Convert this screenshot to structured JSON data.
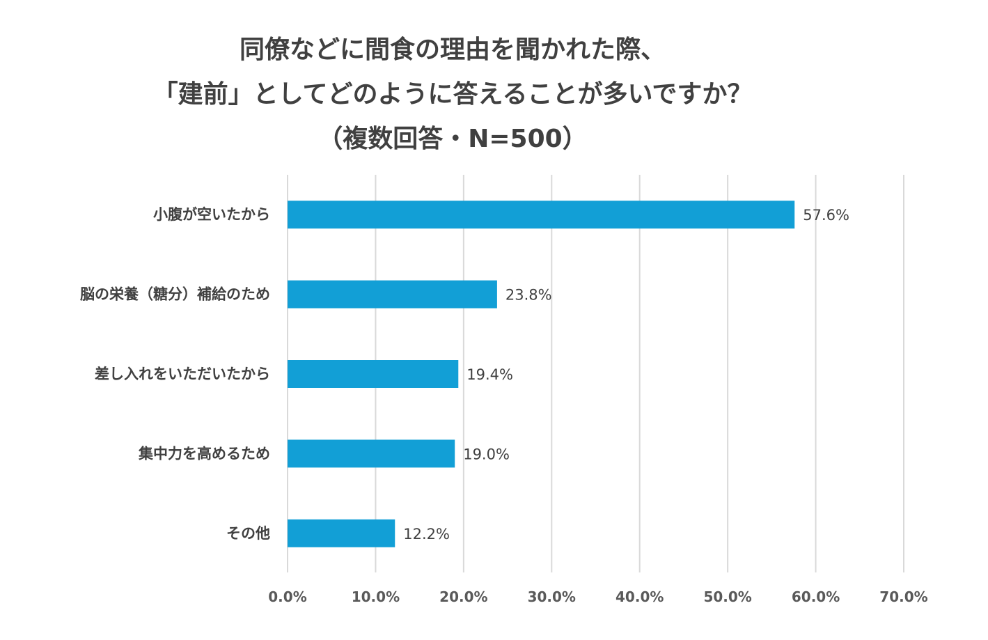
{
  "chart_data": {
    "type": "bar",
    "orientation": "horizontal",
    "title_lines": [
      "同僚などに間食の理由を聞かれた際、",
      "「建前」としてどのように答えることが多いですか？",
      "（複数回答・N=500）"
    ],
    "categories": [
      "小腹が空いたから",
      "脳の栄養（糖分）補給のため",
      "差し入れをいただいたから",
      "集中力を高めるため",
      "その他"
    ],
    "values": [
      57.6,
      23.8,
      19.4,
      19.0,
      12.2
    ],
    "data_labels": [
      "57.6%",
      "23.8%",
      "19.4%",
      "19.0%",
      "12.2%"
    ],
    "xlim": [
      0,
      70
    ],
    "x_ticks": [
      0,
      10,
      20,
      30,
      40,
      50,
      60,
      70
    ],
    "x_tick_labels": [
      "0.0%",
      "10.0%",
      "20.0%",
      "30.0%",
      "40.0%",
      "50.0%",
      "60.0%",
      "70.0%"
    ],
    "grid": "vertical",
    "bar_color": "#129fd6",
    "grid_color": "#d9d9d9",
    "text_color": "#404040"
  }
}
